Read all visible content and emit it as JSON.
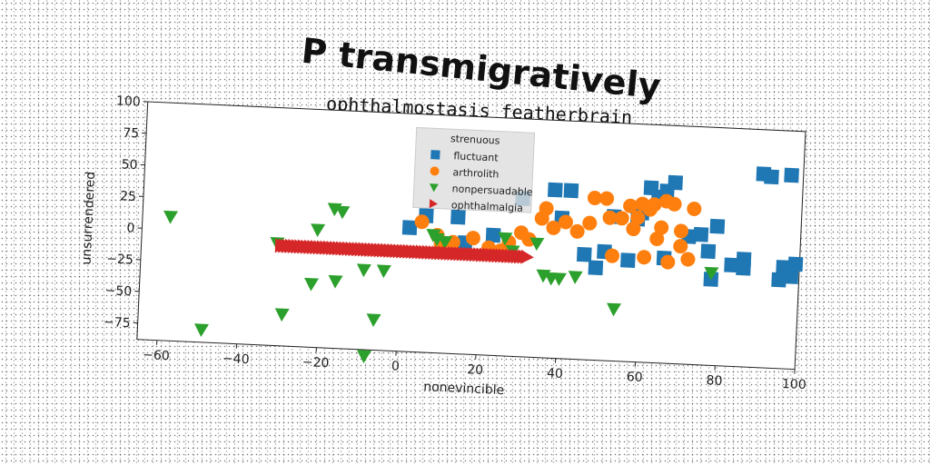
{
  "chart_data": {
    "type": "scatter",
    "title": "P transmigratively",
    "subtitle": "ophthalmostasis featherbrain",
    "xlabel": "nonevincible",
    "ylabel": "unsurrendered",
    "xlim": [
      -65,
      100
    ],
    "ylim": [
      -88,
      100
    ],
    "xticks": [
      -60,
      -40,
      -20,
      0,
      20,
      40,
      60,
      80,
      100
    ],
    "yticks": [
      -75,
      -50,
      -25,
      0,
      25,
      50,
      75,
      100
    ],
    "grid": false,
    "legend": {
      "title": "strenuous",
      "placement": "top-center"
    },
    "series": [
      {
        "name": "fluctuant",
        "marker": "square",
        "color": "#1f77b4",
        "points": [
          [
            2,
            10
          ],
          [
            6,
            20
          ],
          [
            14,
            20
          ],
          [
            16,
            0
          ],
          [
            23,
            7
          ],
          [
            30,
            37
          ],
          [
            38,
            45
          ],
          [
            40,
            23
          ],
          [
            42,
            45
          ],
          [
            46,
            -5
          ],
          [
            49,
            -15
          ],
          [
            51,
            -2
          ],
          [
            53,
            26
          ],
          [
            57,
            -8
          ],
          [
            59,
            25
          ],
          [
            60,
            30
          ],
          [
            62,
            50
          ],
          [
            64,
            43
          ],
          [
            66,
            48
          ],
          [
            68,
            55
          ],
          [
            66,
            -5
          ],
          [
            72,
            13
          ],
          [
            75,
            15
          ],
          [
            77,
            2
          ],
          [
            78,
            -20
          ],
          [
            79,
            22
          ],
          [
            83,
            -8
          ],
          [
            86,
            -10
          ],
          [
            86,
            -3
          ],
          [
            90,
            65
          ],
          [
            92,
            63
          ],
          [
            95,
            -18
          ],
          [
            97,
            65
          ],
          [
            96,
            -8
          ],
          [
            98,
            -15
          ],
          [
            99,
            -5
          ]
        ]
      },
      {
        "name": "arthrolith",
        "marker": "circle",
        "color": "#ff7f0e",
        "points": [
          [
            5,
            15
          ],
          [
            9,
            5
          ],
          [
            10,
            -2
          ],
          [
            13,
            0
          ],
          [
            18,
            4
          ],
          [
            22,
            -3
          ],
          [
            25,
            -5
          ],
          [
            27,
            2
          ],
          [
            30,
            10
          ],
          [
            32,
            5
          ],
          [
            35,
            22
          ],
          [
            36,
            30
          ],
          [
            38,
            15
          ],
          [
            41,
            20
          ],
          [
            44,
            13
          ],
          [
            47,
            20
          ],
          [
            48,
            40
          ],
          [
            51,
            40
          ],
          [
            52,
            25
          ],
          [
            53,
            -5
          ],
          [
            55,
            25
          ],
          [
            57,
            35
          ],
          [
            58,
            17
          ],
          [
            59,
            26
          ],
          [
            60,
            37
          ],
          [
            61,
            -5
          ],
          [
            62,
            33
          ],
          [
            63,
            37
          ],
          [
            65,
            19
          ],
          [
            66,
            40
          ],
          [
            64,
            10
          ],
          [
            67,
            -8
          ],
          [
            68,
            38
          ],
          [
            70,
            17
          ],
          [
            72,
            -5
          ],
          [
            73,
            35
          ],
          [
            70,
            5
          ]
        ]
      },
      {
        "name": "nonpersuadable",
        "marker": "triangle-down",
        "color": "#2ca02c",
        "points": [
          [
            -58,
            10
          ],
          [
            -49,
            -78
          ],
          [
            -31,
            -7
          ],
          [
            -29,
            -63
          ],
          [
            -22,
            -38
          ],
          [
            -21,
            5
          ],
          [
            -17,
            22
          ],
          [
            -16,
            -35
          ],
          [
            -15,
            20
          ],
          [
            -9,
            -25
          ],
          [
            -8,
            -93
          ],
          [
            -6,
            -64
          ],
          [
            -4,
            -25
          ],
          [
            8,
            5
          ],
          [
            9,
            2
          ],
          [
            11,
            0
          ],
          [
            26,
            5
          ],
          [
            28,
            -5
          ],
          [
            34,
            2
          ],
          [
            36,
            -23
          ],
          [
            38,
            -25
          ],
          [
            40,
            -25
          ],
          [
            44,
            -23
          ],
          [
            54,
            -47
          ],
          [
            78,
            -15
          ]
        ]
      },
      {
        "name": "ophthalmalgia",
        "marker": "triangle-right",
        "color": "#d62728",
        "y": -9,
        "x_start": -30,
        "x_end": 32,
        "x_step": 0.8
      }
    ]
  }
}
